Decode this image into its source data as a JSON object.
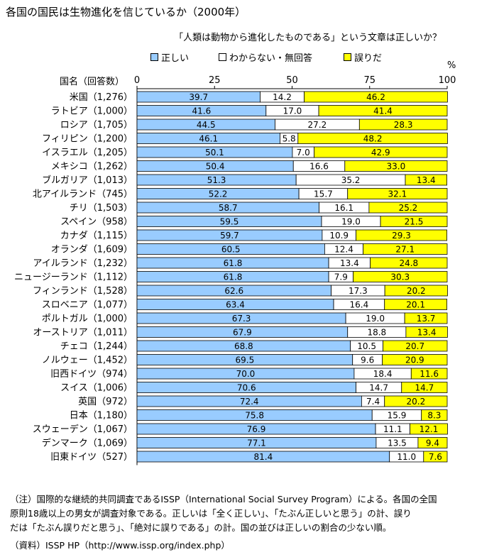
{
  "title": "各国の国民は生物進化を信じているか（2000年）",
  "subtitle": "「人類は動物から進化したものである」という文章は正しいか？",
  "unit": "%",
  "axis_header": "国名（回答数）",
  "colors": {
    "correct": "#99CCFF",
    "unknown": "#FFFFFF",
    "wrong": "#FFFF00"
  },
  "chart_data": {
    "type": "bar",
    "orientation": "horizontal",
    "stacked": true,
    "title": "各国の国民は生物進化を信じているか（2000年）",
    "xlim": [
      0,
      100
    ],
    "xticks": [
      "0",
      "25",
      "50",
      "75",
      "100"
    ],
    "xlabel": "%",
    "legend_position": "top",
    "categories": [
      "米国（1,276）",
      "ラトビア（1,000）",
      "ロシア（1,705）",
      "フィリピン（1,200）",
      "イスラエル（1,205）",
      "メキシコ（1,262）",
      "ブルガリア（1,013）",
      "北アイルランド（745）",
      "チリ（1,503）",
      "スペイン（958）",
      "カナダ（1,115）",
      "オランダ（1,609）",
      "アイルランド（1,232）",
      "ニュージーランド（1,112）",
      "フィンランド（1,528）",
      "スロベニア（1,077）",
      "ポルトガル（1,000）",
      "オーストリア（1,011）",
      "チェコ（1,244）",
      "ノルウェー（1,452）",
      "旧西ドイツ（974）",
      "スイス（1,006）",
      "英国（972）",
      "日本（1,180）",
      "スウェーデン（1,067）",
      "デンマーク（1,069）",
      "旧東ドイツ（527）"
    ],
    "series": [
      {
        "name": "正しい",
        "color": "#99CCFF",
        "values": [
          39.7,
          41.6,
          44.5,
          46.1,
          50.1,
          50.4,
          51.3,
          52.2,
          58.7,
          59.5,
          59.7,
          60.5,
          61.8,
          61.8,
          62.6,
          63.4,
          67.3,
          67.9,
          68.8,
          69.5,
          70.0,
          70.6,
          72.4,
          75.8,
          76.9,
          77.1,
          81.4
        ]
      },
      {
        "name": "わからない・無回答",
        "color": "#FFFFFF",
        "values": [
          14.2,
          17.0,
          27.2,
          5.8,
          7.0,
          16.6,
          35.2,
          15.7,
          16.1,
          19.0,
          10.9,
          12.4,
          13.4,
          7.9,
          17.3,
          16.4,
          19.0,
          18.8,
          10.5,
          9.6,
          18.4,
          14.7,
          7.4,
          15.9,
          11.1,
          13.5,
          11.0
        ]
      },
      {
        "name": "誤りだ",
        "color": "#FFFF00",
        "values": [
          46.2,
          41.4,
          28.3,
          48.2,
          42.9,
          33.0,
          13.4,
          32.1,
          25.2,
          21.5,
          29.3,
          27.1,
          24.8,
          30.3,
          20.2,
          20.1,
          13.7,
          13.4,
          20.7,
          20.9,
          11.6,
          14.7,
          20.2,
          8.3,
          12.1,
          9.4,
          7.6
        ]
      }
    ]
  },
  "note": {
    "lines": [
      "（注）国際的な継続的共同調査であるISSP（International Social Survey Program）による。各国の全国",
      "原則18歳以上の男女が調査対象である。正しいは「全く正しい」、「たぶん正しいと思う」の計、誤り",
      "だは「たぶん誤りだと思う」、「絶対に誤りである」の計。国の並びは正しいの割合の少ない順。"
    ]
  },
  "source": "（資料）ISSP HP（http://www.issp.org/index.php）"
}
